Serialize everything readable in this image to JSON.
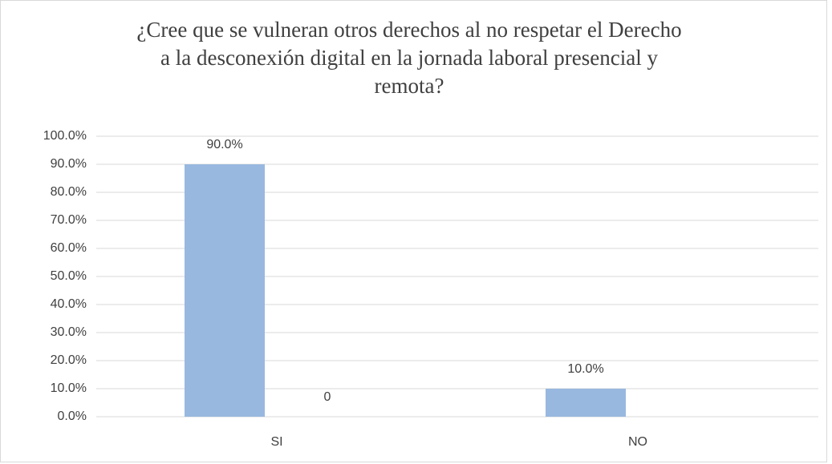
{
  "chart_data": {
    "type": "bar",
    "title": [
      "¿Cree que se vulneran otros derechos al no respetar el Derecho",
      "a la desconexión digital en la jornada laboral presencial y",
      "remota?"
    ],
    "categories": [
      "SI",
      "NO"
    ],
    "series": [
      {
        "color": "#98b8df",
        "values": [
          90,
          10
        ],
        "value_labels": [
          "90.0%",
          "10.0%"
        ]
      },
      {
        "values": [
          0,
          null
        ]
      }
    ],
    "ylim": [
      0,
      100
    ],
    "yticks": [
      {
        "value": 0,
        "label": "0.0%"
      },
      {
        "value": 10,
        "label": "10.0%"
      },
      {
        "value": 20,
        "label": "20.0%"
      },
      {
        "value": 30,
        "label": "30.0%"
      },
      {
        "value": 40,
        "label": "40.0%"
      },
      {
        "value": 50,
        "label": "50.0%"
      },
      {
        "value": 60,
        "label": "60.0%"
      },
      {
        "value": 70,
        "label": "70.0%"
      },
      {
        "value": 80,
        "label": "80.0%"
      },
      {
        "value": 90,
        "label": "90.0%"
      },
      {
        "value": 100,
        "label": "100.0%"
      }
    ],
    "grid": true
  }
}
